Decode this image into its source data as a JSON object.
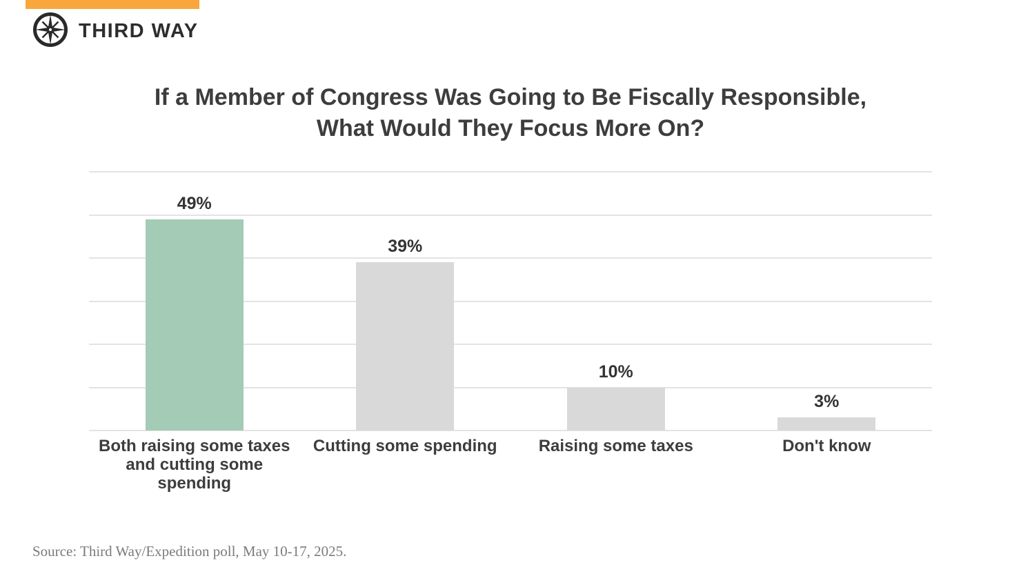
{
  "brand": {
    "name": "THIRD WAY",
    "accent_bar_color": "#f9a63c",
    "logo_icon": "compass-star-icon",
    "logo_color": "#2a2a2a"
  },
  "title_lines": [
    "If a Member of Congress Was Going to Be Fiscally Responsible,",
    "What Would They Focus More On?"
  ],
  "source": "Source: Third Way/Expedition poll, May 10-17, 2025.",
  "chart_data": {
    "type": "bar",
    "title": "If a Member of Congress Was Going to Be Fiscally Responsible, What Would They Focus More On?",
    "categories": [
      "Both raising some taxes and cutting some spending",
      "Cutting some spending",
      "Raising some taxes",
      "Don't know"
    ],
    "category_display": [
      "Both raising some taxes\nand cutting some\nspending",
      "Cutting some spending",
      "Raising some taxes",
      "Don't know"
    ],
    "values": [
      49,
      39,
      10,
      3
    ],
    "value_labels": [
      "49%",
      "39%",
      "10%",
      "3%"
    ],
    "bar_colors": [
      "#a4cbb5",
      "#d9d9d9",
      "#d9d9d9",
      "#d9d9d9"
    ],
    "highlight_color": "#a4cbb5",
    "default_bar_color": "#d9d9d9",
    "ylim": [
      0,
      60
    ],
    "gridline_step": 10,
    "gridline_color": "#e3e3e3",
    "grid": "horizontal gridlines only, no axis tick labels",
    "legend": "none",
    "xlabel": "",
    "ylabel": ""
  }
}
